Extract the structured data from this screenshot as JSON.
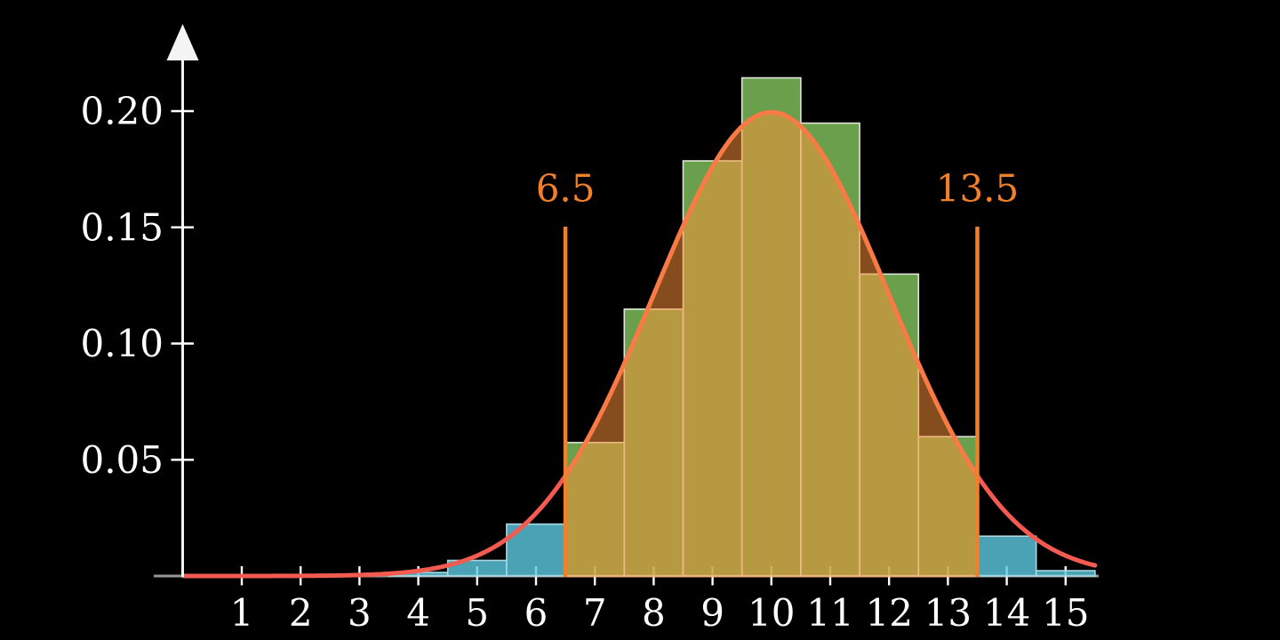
{
  "figure": {
    "background": "#000000"
  },
  "chart_data": {
    "type": "bar",
    "subtype": "histogram_with_normal_curve",
    "title": "",
    "xlabel": "",
    "ylabel": "",
    "grid": false,
    "legend": "none",
    "xlim": [
      -0.5,
      15.6
    ],
    "ylim": [
      0,
      0.235
    ],
    "x_tick_labels": [
      "1",
      "2",
      "3",
      "4",
      "5",
      "6",
      "7",
      "8",
      "9",
      "10",
      "11",
      "12",
      "13",
      "14",
      "15"
    ],
    "y_tick_labels": [
      "0.05",
      "0.10",
      "0.15",
      "0.20"
    ],
    "y_tick_values": [
      0.05,
      0.1,
      0.15,
      0.2
    ],
    "histogram": {
      "bin_centers": [
        1,
        2,
        3,
        4,
        5,
        6,
        7,
        8,
        9,
        10,
        11,
        12,
        13,
        14,
        15
      ],
      "bin_width": 1,
      "values": [
        2e-06,
        2.9e-05,
        0.000254,
        0.001522,
        0.006697,
        0.022324,
        0.057404,
        0.114808,
        0.178591,
        0.214309,
        0.194826,
        0.129884,
        0.059947,
        0.017128,
        0.002284
      ]
    },
    "curve": {
      "kind": "normal_pdf",
      "mean": 10,
      "sd": 2,
      "peak_value": 0.1995,
      "x_start": 0.02,
      "x_end": 15.52
    },
    "region": {
      "from": 6.5,
      "to": 13.5,
      "from_label": "6.5",
      "to_label": "13.5",
      "line_top_value": 0.1503
    },
    "colors": {
      "background": "#000000",
      "x_axis": "#969696",
      "y_axis": "#F4F4F4",
      "ticks": "#FFFFFF",
      "tick_labels": "#FFFFFF",
      "bar_teal_fill": "#5CCAE1",
      "bar_teal_alpha": 0.8,
      "bar_teal_stroke": "#A9D8E2",
      "bar_green_fill": "#84C85F",
      "bar_green_alpha": 0.8,
      "bar_green_stroke": "#DFE3D8",
      "curve_salmon": "#F35B50",
      "curve_inside_region": "#F87A45",
      "region_fill": "#FF9437",
      "region_fill_alpha": 0.52,
      "region_line": "#F0802A",
      "region_label": "#F0802A"
    }
  }
}
